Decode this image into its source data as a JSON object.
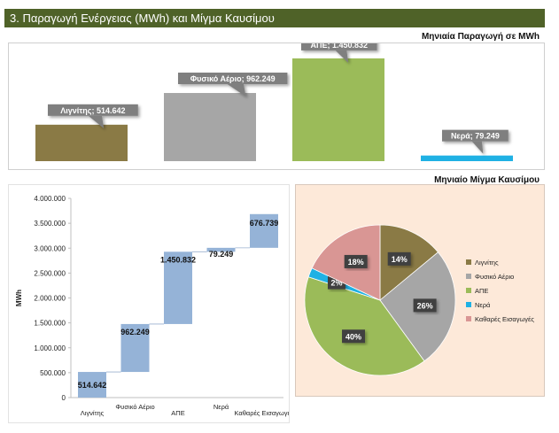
{
  "header": {
    "title": "3. Παραγωγή Ενέργειας (MWh) και Μίγμα Καυσίμου"
  },
  "colors": {
    "header": "#4f6228",
    "lignite": "#8a7a45",
    "gas": "#a6a6a6",
    "res": "#9bbb59",
    "water": "#1fb1e4",
    "imports": "#d99694",
    "waterfall": "#95b3d7",
    "pie_bg": "#fde9d9"
  },
  "chart_data": [
    {
      "type": "bar",
      "title": "Μηνιαία Παραγωγή σε MWh",
      "categories": [
        "Λιγνίτης",
        "Φυσικό Αέριο",
        "ΑΠΕ",
        "Νερά"
      ],
      "values": [
        514642,
        962249,
        1450832,
        79249
      ],
      "data_labels": [
        "Λιγνίτης; 514.642",
        "Φυσικό Αέριο; 962.249",
        "ΑΠΕ; 1.450.832",
        "Νερά; 79.249"
      ],
      "ylim": [
        0,
        1500000
      ],
      "grid": false,
      "legend": "none"
    },
    {
      "type": "bar",
      "subtype": "waterfall",
      "categories": [
        "Λιγνίτης",
        "Φυσικό Αέριο",
        "ΑΠΕ",
        "Νερά",
        "Καθαρές Εισαγωγές"
      ],
      "values": [
        514642,
        962249,
        1450832,
        79249,
        676739
      ],
      "data_labels": [
        "514.642",
        "962.249",
        "1.450.832",
        "79.249",
        "676.739"
      ],
      "ylabel": "MWh",
      "ylim": [
        0,
        4000000
      ],
      "yticks": [
        "0",
        "500.000",
        "1.000.000",
        "1.500.000",
        "2.000.000",
        "2.500.000",
        "3.000.000",
        "3.500.000",
        "4.000.000"
      ],
      "grid": false
    },
    {
      "type": "pie",
      "title": "Μηνιαίο Μίγμα Καυσίμου",
      "categories": [
        "Λιγνίτης",
        "Φυσικό Αέριο",
        "ΑΠΕ",
        "Νερά",
        "Καθαρές Εισαγωγές"
      ],
      "values": [
        14,
        26,
        40,
        2,
        18
      ],
      "data_labels": [
        "14%",
        "26%",
        "40%",
        "2%",
        "18%"
      ],
      "legend": "right"
    }
  ]
}
